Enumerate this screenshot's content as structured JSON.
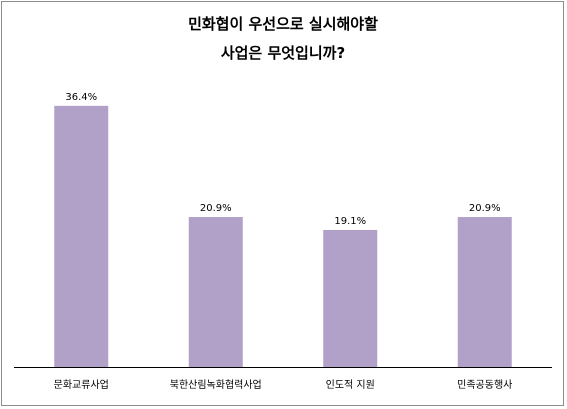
{
  "chart_data": {
    "type": "bar",
    "title_lines": [
      "민화협이 우선으로 실시해야할",
      "사업은 무엇입니까?"
    ],
    "categories": [
      "문화교류사업",
      "북한산림녹화협력사업",
      "인도적 지원",
      "민족공동행사"
    ],
    "values": [
      36.4,
      20.9,
      19.1,
      20.9
    ],
    "data_labels": [
      "36.4%",
      "20.9%",
      "19.1%",
      "20.9%"
    ],
    "bar_color": "#b1a0c7",
    "ylim": [
      0,
      40
    ],
    "grid": false,
    "legend": "none"
  }
}
